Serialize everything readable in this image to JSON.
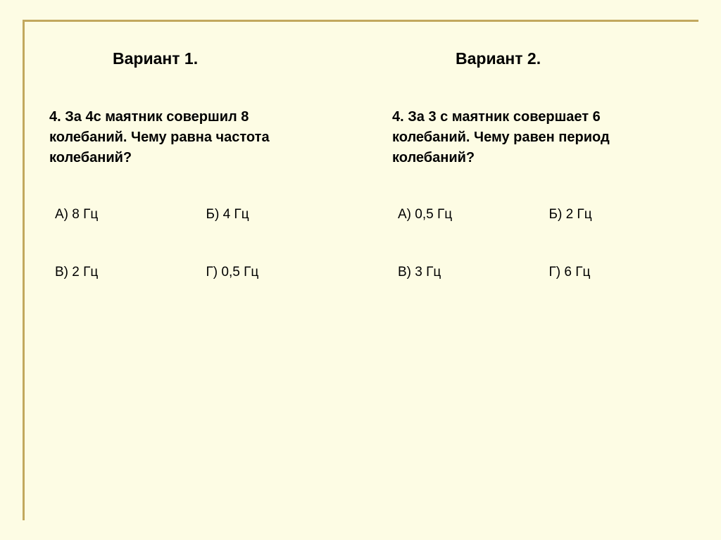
{
  "background_color": "#fdfce4",
  "frame_color": "#c2a85e",
  "text_color": "#000000",
  "typography": {
    "title_fontsize": 23,
    "question_fontsize": 20,
    "answer_fontsize": 19,
    "font_weight_title": "bold",
    "font_weight_question": "bold",
    "font_weight_answer": "normal"
  },
  "left": {
    "title": "Вариант 1.",
    "question": "4. За 4с маятник совершил 8 колебаний. Чему равна частота колебаний?",
    "answers": {
      "a": "А) 8 Гц",
      "b": "Б) 4 Гц",
      "v": "В) 2 Гц",
      "g": "Г) 0,5 Гц"
    }
  },
  "right": {
    "title": "Вариант 2.",
    "question": "4. За 3 с маятник совершает 6 колебаний. Чему равен период колебаний?",
    "answers": {
      "a": "А) 0,5 Гц",
      "b": "Б) 2 Гц",
      "v": "В) 3 Гц",
      "g": "Г) 6 Гц"
    }
  }
}
